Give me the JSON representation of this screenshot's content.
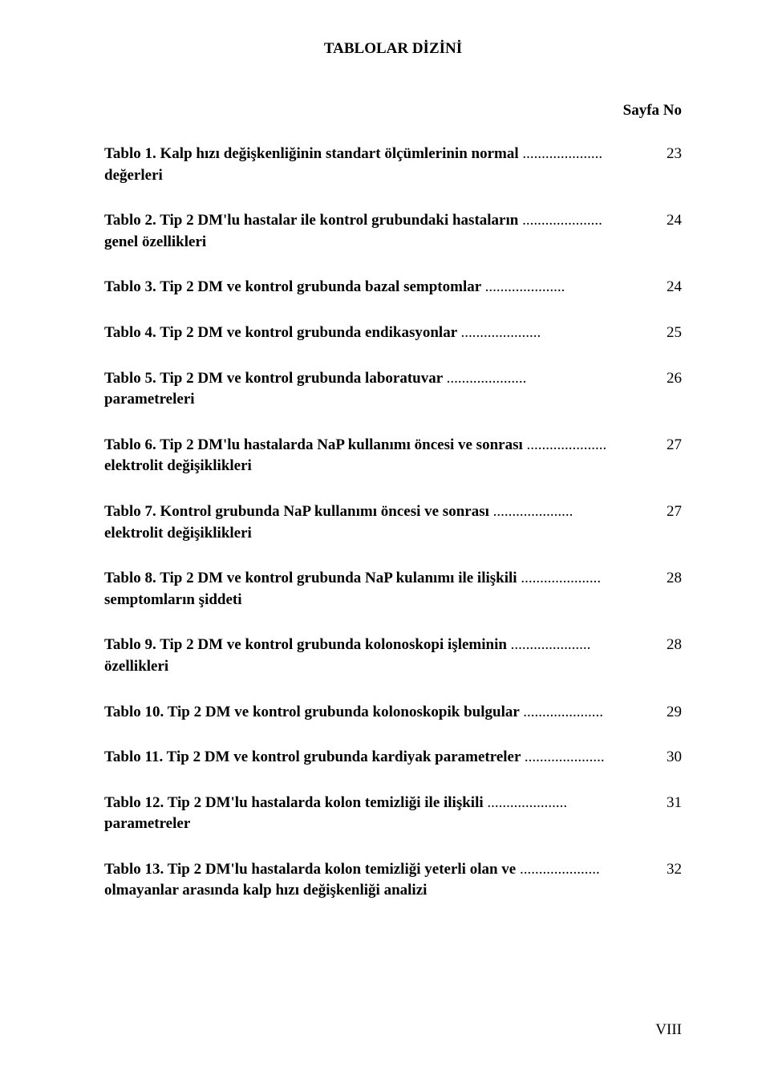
{
  "title": "TABLOLAR DİZİNİ",
  "header": "Sayfa No",
  "footer": "VIII",
  "entries": [
    {
      "label": "Tablo 1.",
      "text": " Kalp hızı değişkenliğinin standart ölçümlerinin normal ",
      "cont": "değerleri",
      "page": "23"
    },
    {
      "label": "Tablo 2.",
      "text": " Tip 2 DM'lu hastalar ile kontrol grubundaki hastaların ",
      "cont": "genel  özellikleri",
      "page": "24"
    },
    {
      "label": "Tablo 3.",
      "text": " Tip 2 DM  ve kontrol grubunda bazal semptomlar ",
      "cont": "",
      "page": "24"
    },
    {
      "label": "Tablo 4.",
      "text": " Tip 2 DM  ve kontrol grubunda endikasyonlar ",
      "cont": "",
      "page": "25"
    },
    {
      "label": "Tablo 5.",
      "text": " Tip 2 DM  ve kontrol grubunda laboratuvar ",
      "cont": "parametreleri",
      "page": "26"
    },
    {
      "label": "Tablo 6.",
      "text": " Tip 2 DM'lu hastalarda NaP kullanımı öncesi ve sonrası ",
      "cont": "elektrolit değişiklikleri",
      "page": "27"
    },
    {
      "label": "Tablo 7.",
      "text": " Kontrol grubunda NaP kullanımı öncesi ve sonrası ",
      "cont": "elektrolit değişiklikleri",
      "page": "27"
    },
    {
      "label": "Tablo 8.",
      "text": " Tip 2 DM  ve kontrol grubunda NaP kulanımı ile ilişkili ",
      "cont": "semptomların şiddeti",
      "page": "28"
    },
    {
      "label": "Tablo 9.",
      "text": " Tip 2 DM  ve kontrol grubunda kolonoskopi işleminin ",
      "cont": "özellikleri",
      "page": "28"
    },
    {
      "label": "Tablo 10.",
      "text": " Tip 2 DM  ve kontrol grubunda kolonoskopik bulgular ",
      "cont": "",
      "page": "29"
    },
    {
      "label": "Tablo 11.",
      "text": " Tip 2 DM  ve kontrol grubunda kardiyak  parametreler ",
      "cont": "",
      "page": "30"
    },
    {
      "label": "Tablo 12.",
      "text": " Tip 2 DM'lu  hastalarda kolon temizliği ile ilişkili ",
      "cont": "parametreler",
      "page": "31"
    },
    {
      "label": "Tablo 13.",
      "text": " Tip 2 DM'lu hastalarda kolon temizliği yeterli olan ve ",
      "cont": "olmayanlar arasında kalp hızı değişkenliği analizi",
      "page": "32"
    }
  ]
}
